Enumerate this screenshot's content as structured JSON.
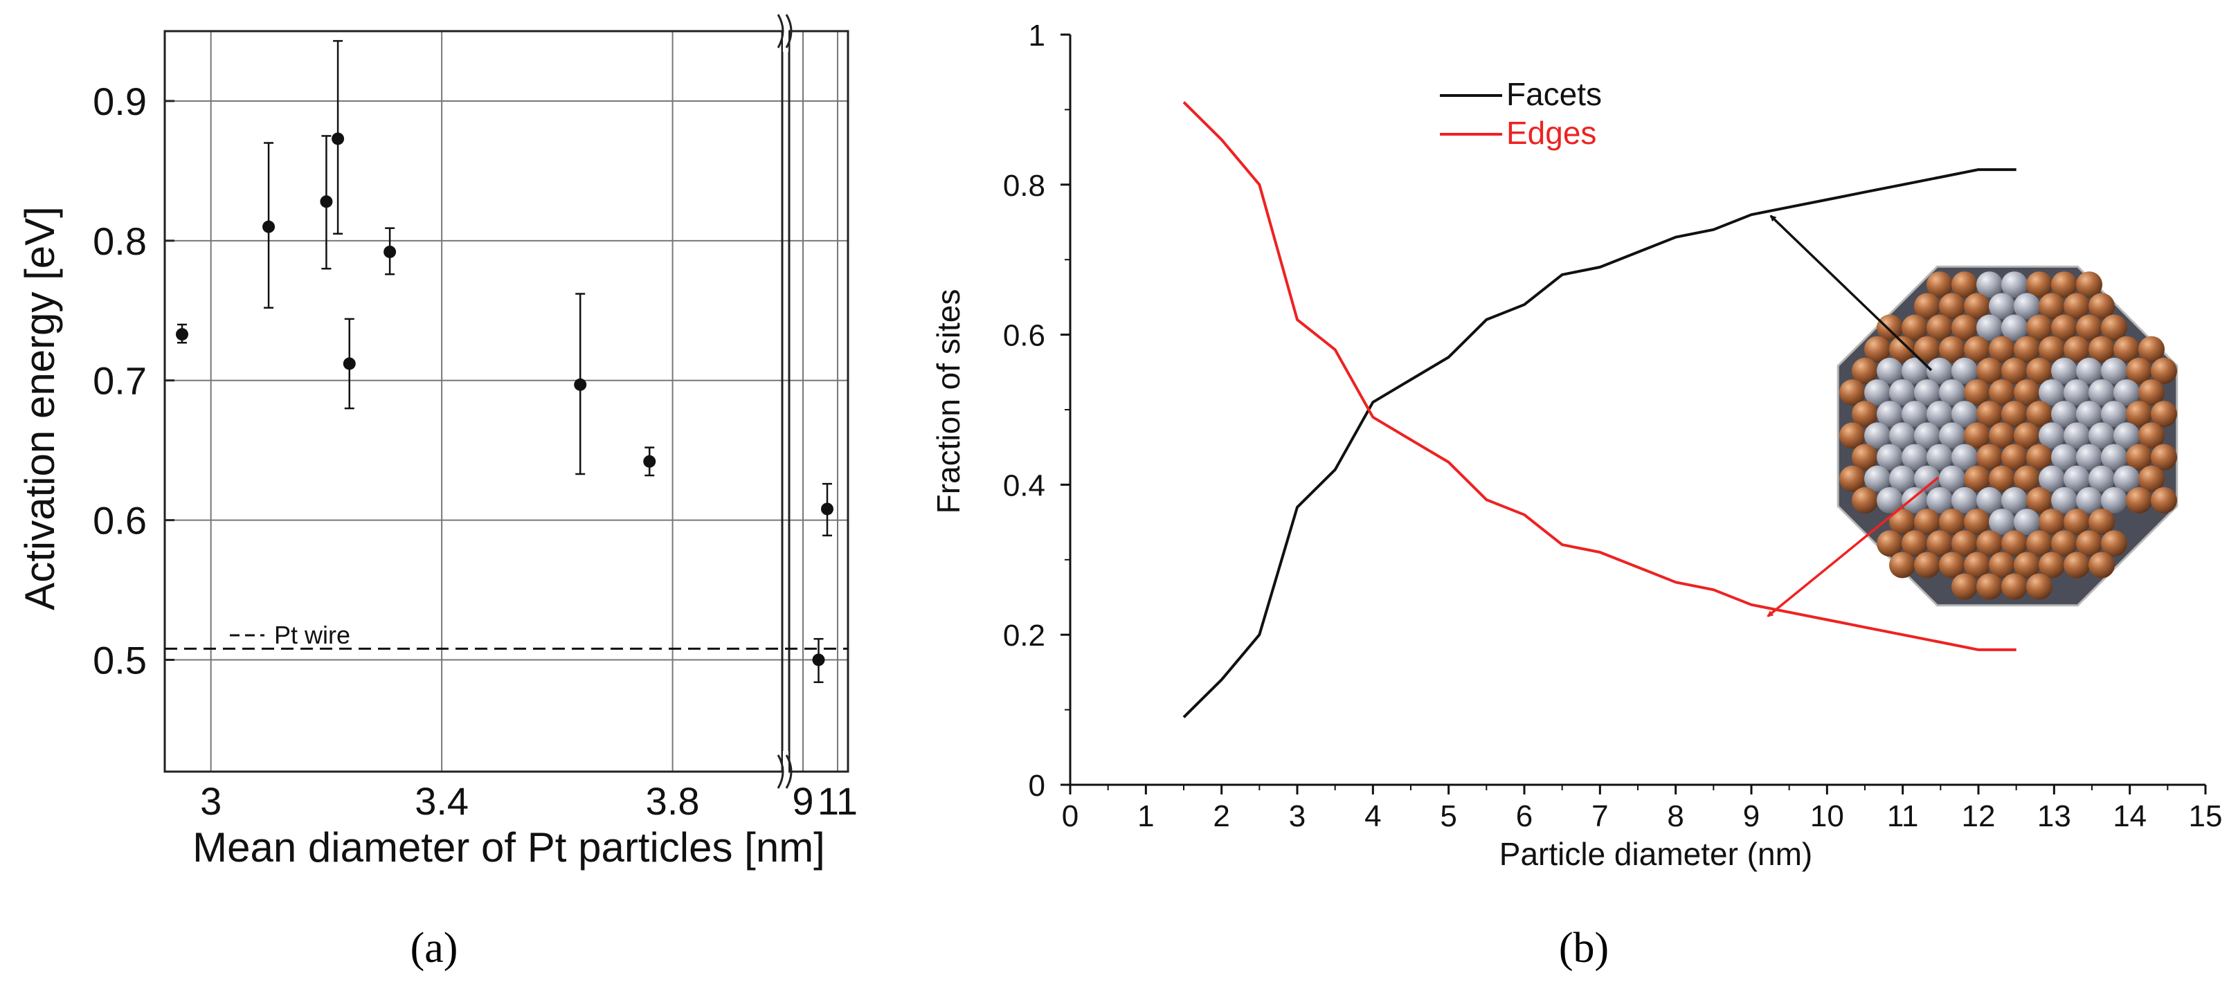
{
  "chart_data": [
    {
      "id": "a",
      "type": "scatter",
      "panel_label": "(a)",
      "xlabel": "Mean diameter of Pt particles [nm]",
      "ylabel": "Activation energy [eV]",
      "ylim": [
        0.42,
        0.95
      ],
      "xlim_main": [
        2.92,
        3.99
      ],
      "xlim_break": [
        8.2,
        11.6
      ],
      "x_ticks_main": [
        3.0,
        3.4,
        3.8
      ],
      "x_tick_labels_main": [
        "3",
        "3.4",
        "3.8"
      ],
      "x_ticks_break": [
        9,
        11
      ],
      "x_tick_labels_break": [
        "9",
        "11"
      ],
      "y_ticks": [
        0.5,
        0.6,
        0.7,
        0.8,
        0.9
      ],
      "y_tick_labels": [
        "0.5",
        "0.6",
        "0.7",
        "0.8",
        "0.9"
      ],
      "grid": true,
      "reference_line": {
        "label": "Pt wire",
        "y": 0.508
      },
      "points": [
        {
          "x": 2.95,
          "y": 0.733,
          "lo": 0.727,
          "hi": 0.74,
          "segment": "main"
        },
        {
          "x": 3.1,
          "y": 0.81,
          "lo": 0.752,
          "hi": 0.87,
          "segment": "main"
        },
        {
          "x": 3.2,
          "y": 0.828,
          "lo": 0.78,
          "hi": 0.875,
          "segment": "main"
        },
        {
          "x": 3.22,
          "y": 0.873,
          "lo": 0.805,
          "hi": 0.943,
          "segment": "main"
        },
        {
          "x": 3.24,
          "y": 0.712,
          "lo": 0.68,
          "hi": 0.744,
          "segment": "main"
        },
        {
          "x": 3.31,
          "y": 0.792,
          "lo": 0.776,
          "hi": 0.809,
          "segment": "main"
        },
        {
          "x": 3.64,
          "y": 0.697,
          "lo": 0.633,
          "hi": 0.762,
          "segment": "main"
        },
        {
          "x": 3.76,
          "y": 0.642,
          "lo": 0.632,
          "hi": 0.652,
          "segment": "main"
        },
        {
          "x": 9.9,
          "y": 0.5,
          "lo": 0.484,
          "hi": 0.515,
          "segment": "break"
        },
        {
          "x": 10.4,
          "y": 0.608,
          "lo": 0.589,
          "hi": 0.626,
          "segment": "break"
        }
      ]
    },
    {
      "id": "b",
      "type": "line",
      "panel_label": "(b)",
      "xlabel": "Particle diameter (nm)",
      "ylabel": "Fraction of sites",
      "xlim": [
        0,
        15
      ],
      "ylim": [
        0,
        1
      ],
      "x_ticks": [
        0,
        1,
        2,
        3,
        4,
        5,
        6,
        7,
        8,
        9,
        10,
        11,
        12,
        13,
        14,
        15
      ],
      "x_tick_labels": [
        "0",
        "1",
        "2",
        "3",
        "4",
        "5",
        "6",
        "7",
        "8",
        "9",
        "10",
        "11",
        "12",
        "13",
        "14",
        "15"
      ],
      "y_ticks": [
        0,
        0.2,
        0.4,
        0.6,
        0.8,
        1
      ],
      "y_tick_labels": [
        "0",
        "0.2",
        "0.4",
        "0.6",
        "0.8",
        "1"
      ],
      "grid": false,
      "legend_position": "top-center",
      "x": [
        1.5,
        2,
        2.5,
        3,
        3.5,
        4,
        4.5,
        5,
        5.5,
        6,
        6.5,
        7,
        7.5,
        8,
        8.5,
        9,
        9.5,
        10,
        10.5,
        11,
        11.5,
        12,
        12.5
      ],
      "series": [
        {
          "name": "Facets",
          "color": "#111111",
          "values": [
            0.09,
            0.14,
            0.2,
            0.37,
            0.42,
            0.51,
            0.54,
            0.57,
            0.62,
            0.64,
            0.68,
            0.69,
            0.71,
            0.73,
            0.74,
            0.76,
            0.77,
            0.78,
            0.79,
            0.8,
            0.81,
            0.82,
            0.82
          ]
        },
        {
          "name": "Edges",
          "color": "#ee2222",
          "values": [
            0.91,
            0.86,
            0.8,
            0.62,
            0.58,
            0.49,
            0.46,
            0.43,
            0.38,
            0.36,
            0.32,
            0.31,
            0.29,
            0.27,
            0.26,
            0.24,
            0.23,
            0.22,
            0.21,
            0.2,
            0.19,
            0.18,
            0.18
          ]
        }
      ],
      "inset": "cuboctahedral-nanoparticle-image",
      "annotations": [
        {
          "type": "arrow",
          "color": "#111111",
          "points_to_series": "Facets",
          "at_x": 9.2
        },
        {
          "type": "arrow",
          "color": "#ee2222",
          "points_to_series": "Edges",
          "at_x": 9.4
        }
      ]
    }
  ],
  "colors": {
    "facets": "#111111",
    "edges": "#ee2222",
    "surface_atom": "#b36c3e",
    "facet_atom": "#a9adba",
    "core": "#4b4e58"
  }
}
